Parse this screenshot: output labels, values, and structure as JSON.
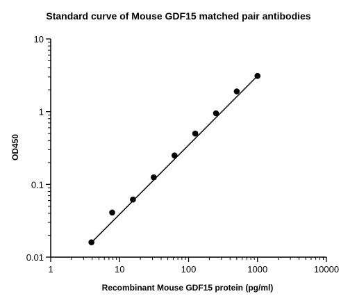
{
  "chart_data": {
    "type": "scatter",
    "title": "Standard curve of Mouse GDF15 matched pair antibodies",
    "xlabel": "Recombinant Mouse GDF15 protein (pg/ml)",
    "ylabel": "OD450",
    "x_scale": "log",
    "y_scale": "log",
    "xlim": [
      1,
      10000
    ],
    "ylim": [
      0.01,
      10
    ],
    "x_ticks": [
      "1",
      "10",
      "100",
      "1000",
      "10000"
    ],
    "y_ticks": [
      "0.01",
      "0.1",
      "1",
      "10"
    ],
    "grid": false,
    "legend": "none",
    "series": [
      {
        "points": [
          {
            "x": 3.9,
            "y": 0.016
          },
          {
            "x": 7.8,
            "y": 0.041
          },
          {
            "x": 15.6,
            "y": 0.062
          },
          {
            "x": 31.3,
            "y": 0.125
          },
          {
            "x": 62.5,
            "y": 0.25
          },
          {
            "x": 125,
            "y": 0.5
          },
          {
            "x": 250,
            "y": 0.95
          },
          {
            "x": 500,
            "y": 1.9
          },
          {
            "x": 1000,
            "y": 3.1
          }
        ],
        "fit_line": {
          "x": [
            3.9,
            1000
          ],
          "y": [
            0.0159,
            3.1
          ]
        },
        "color": "#000000"
      }
    ]
  }
}
